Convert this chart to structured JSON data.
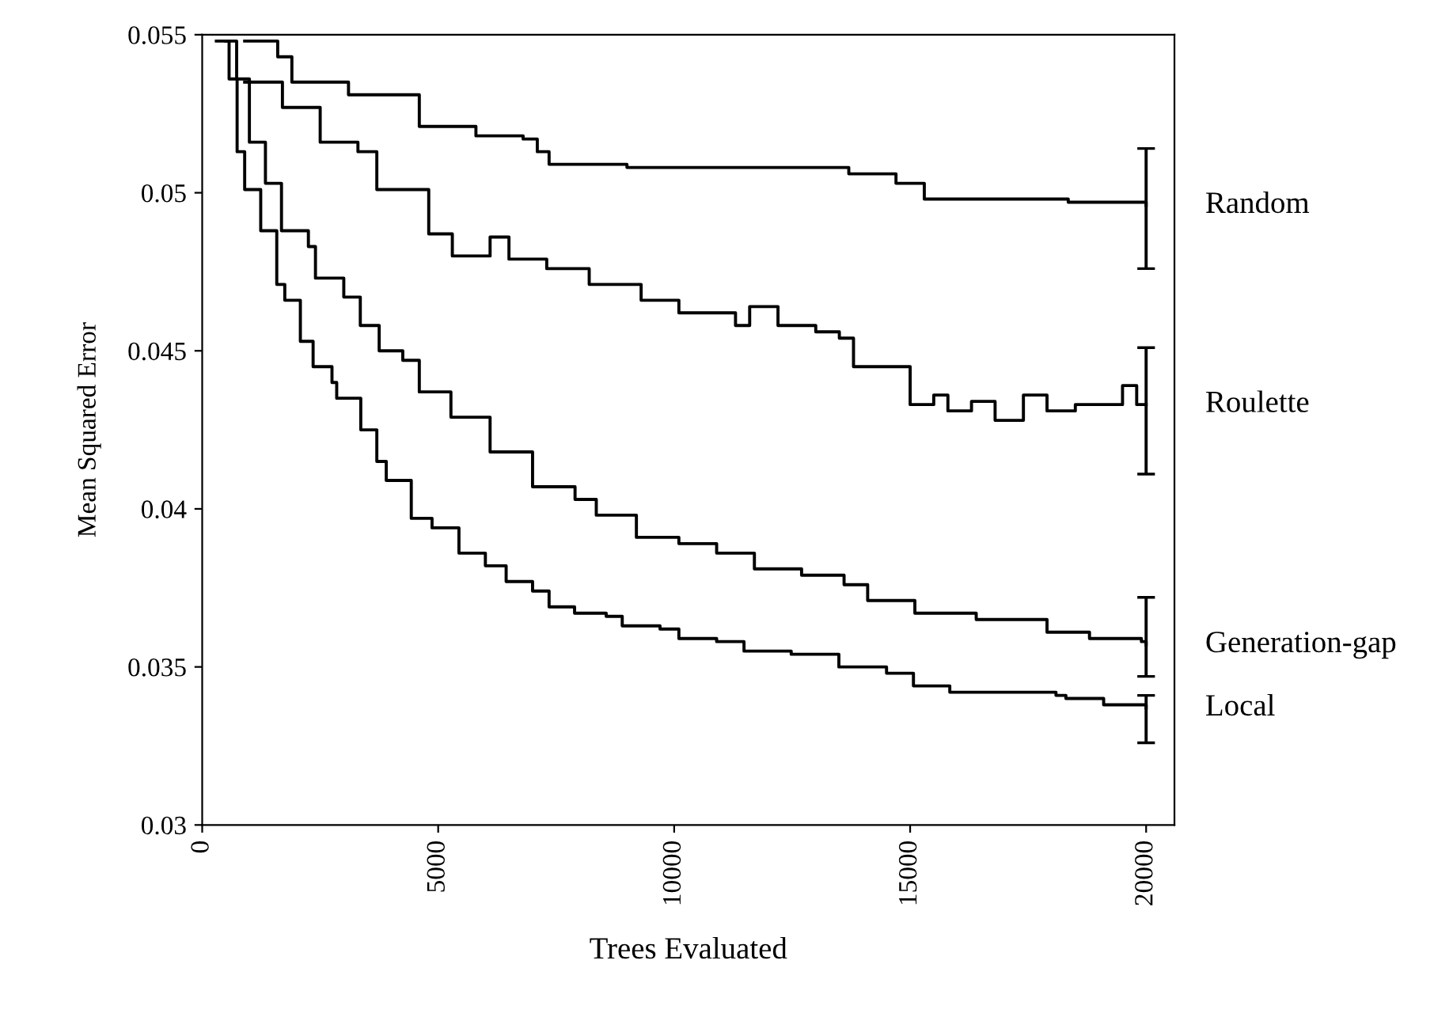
{
  "chart_data": {
    "type": "step",
    "xlabel": "Trees Evaluated",
    "ylabel": "Mean Squared Error",
    "xlim": [
      0,
      20600
    ],
    "ylim": [
      0.03,
      0.055
    ],
    "xticks": [
      0,
      5000,
      10000,
      15000,
      20000
    ],
    "yticks": [
      0.03,
      0.035,
      0.04,
      0.045,
      0.05,
      0.055
    ],
    "grid": false,
    "legend": false,
    "marker": "none",
    "line_style": "solid",
    "series": [
      {
        "name": "Random",
        "color": "#000000",
        "x": [
          900,
          1600,
          1900,
          3100,
          4600,
          5800,
          6800,
          7100,
          7350,
          9000,
          13700,
          14700,
          15300,
          18350,
          20000
        ],
        "values": [
          0.0548,
          0.0543,
          0.0535,
          0.0531,
          0.0521,
          0.0518,
          0.0517,
          0.0513,
          0.0509,
          0.0508,
          0.0506,
          0.0503,
          0.0498,
          0.0497,
          0.0496
        ],
        "errors": [
          null,
          null,
          null,
          null,
          null,
          null,
          null,
          null,
          null,
          null,
          null,
          null,
          null,
          null,
          [
            0.0476,
            0.0514
          ]
        ]
      },
      {
        "name": "Roulette",
        "color": "#000000",
        "x": [
          900,
          1700,
          2500,
          3300,
          3700,
          4800,
          5300,
          6100,
          6500,
          7300,
          8200,
          9300,
          10100,
          11300,
          11600,
          12200,
          13000,
          13500,
          13800,
          15000,
          15500,
          15800,
          16300,
          16800,
          17400,
          17900,
          18500,
          19500,
          19800,
          20000
        ],
        "values": [
          0.0535,
          0.0527,
          0.0516,
          0.0513,
          0.0501,
          0.0487,
          0.048,
          0.0486,
          0.0479,
          0.0476,
          0.0471,
          0.0466,
          0.0462,
          0.0458,
          0.0464,
          0.0458,
          0.0456,
          0.0454,
          0.0445,
          0.0433,
          0.0436,
          0.0431,
          0.0434,
          0.0428,
          0.0436,
          0.0431,
          0.0433,
          0.0439,
          0.0433,
          0.0433
        ],
        "errors": [
          null,
          null,
          null,
          null,
          null,
          null,
          null,
          null,
          null,
          null,
          null,
          null,
          null,
          null,
          null,
          null,
          null,
          null,
          null,
          null,
          null,
          null,
          null,
          null,
          null,
          null,
          null,
          null,
          null,
          [
            0.0411,
            0.0451
          ]
        ]
      },
      {
        "name": "Generation-gap",
        "color": "#000000",
        "x": [
          500,
          730,
          1000,
          1340,
          1680,
          2250,
          2400,
          3000,
          3350,
          3750,
          4250,
          4600,
          5270,
          6100,
          7000,
          7900,
          8350,
          9200,
          10100,
          10900,
          11700,
          12700,
          13600,
          14100,
          15100,
          16400,
          17900,
          18800,
          19900,
          20000
        ],
        "values": [
          0.0548,
          0.0536,
          0.0516,
          0.0503,
          0.0488,
          0.0483,
          0.0473,
          0.0467,
          0.0458,
          0.045,
          0.0447,
          0.0437,
          0.0429,
          0.0418,
          0.0407,
          0.0403,
          0.0398,
          0.0391,
          0.0389,
          0.0386,
          0.0381,
          0.0379,
          0.0376,
          0.0371,
          0.0367,
          0.0365,
          0.0361,
          0.0359,
          0.0358,
          0.0357
        ],
        "errors": [
          null,
          null,
          null,
          null,
          null,
          null,
          null,
          null,
          null,
          null,
          null,
          null,
          null,
          null,
          null,
          null,
          null,
          null,
          null,
          null,
          null,
          null,
          null,
          null,
          null,
          null,
          null,
          null,
          null,
          [
            0.0347,
            0.0372
          ]
        ]
      },
      {
        "name": "Local",
        "color": "#000000",
        "x": [
          300,
          570,
          740,
          900,
          1240,
          1580,
          1750,
          2080,
          2350,
          2750,
          2850,
          3360,
          3700,
          3900,
          4430,
          4870,
          5440,
          6000,
          6440,
          7000,
          7350,
          7890,
          8560,
          8900,
          9700,
          10100,
          10900,
          11480,
          12480,
          13490,
          14500,
          15070,
          15840,
          18090,
          18300,
          19100,
          20000
        ],
        "values": [
          0.0548,
          0.0536,
          0.0513,
          0.0501,
          0.0488,
          0.0471,
          0.0466,
          0.0453,
          0.0445,
          0.044,
          0.0435,
          0.0425,
          0.0415,
          0.0409,
          0.0397,
          0.0394,
          0.0386,
          0.0382,
          0.0377,
          0.0374,
          0.0369,
          0.0367,
          0.0366,
          0.0363,
          0.0362,
          0.0359,
          0.0358,
          0.0355,
          0.0354,
          0.035,
          0.0348,
          0.0344,
          0.0342,
          0.0341,
          0.034,
          0.0338,
          0.0337
        ],
        "errors": [
          null,
          null,
          null,
          null,
          null,
          null,
          null,
          null,
          null,
          null,
          null,
          null,
          null,
          null,
          null,
          null,
          null,
          null,
          null,
          null,
          null,
          null,
          null,
          null,
          null,
          null,
          null,
          null,
          null,
          null,
          null,
          null,
          null,
          null,
          null,
          null,
          [
            0.0326,
            0.0341
          ]
        ]
      }
    ]
  }
}
